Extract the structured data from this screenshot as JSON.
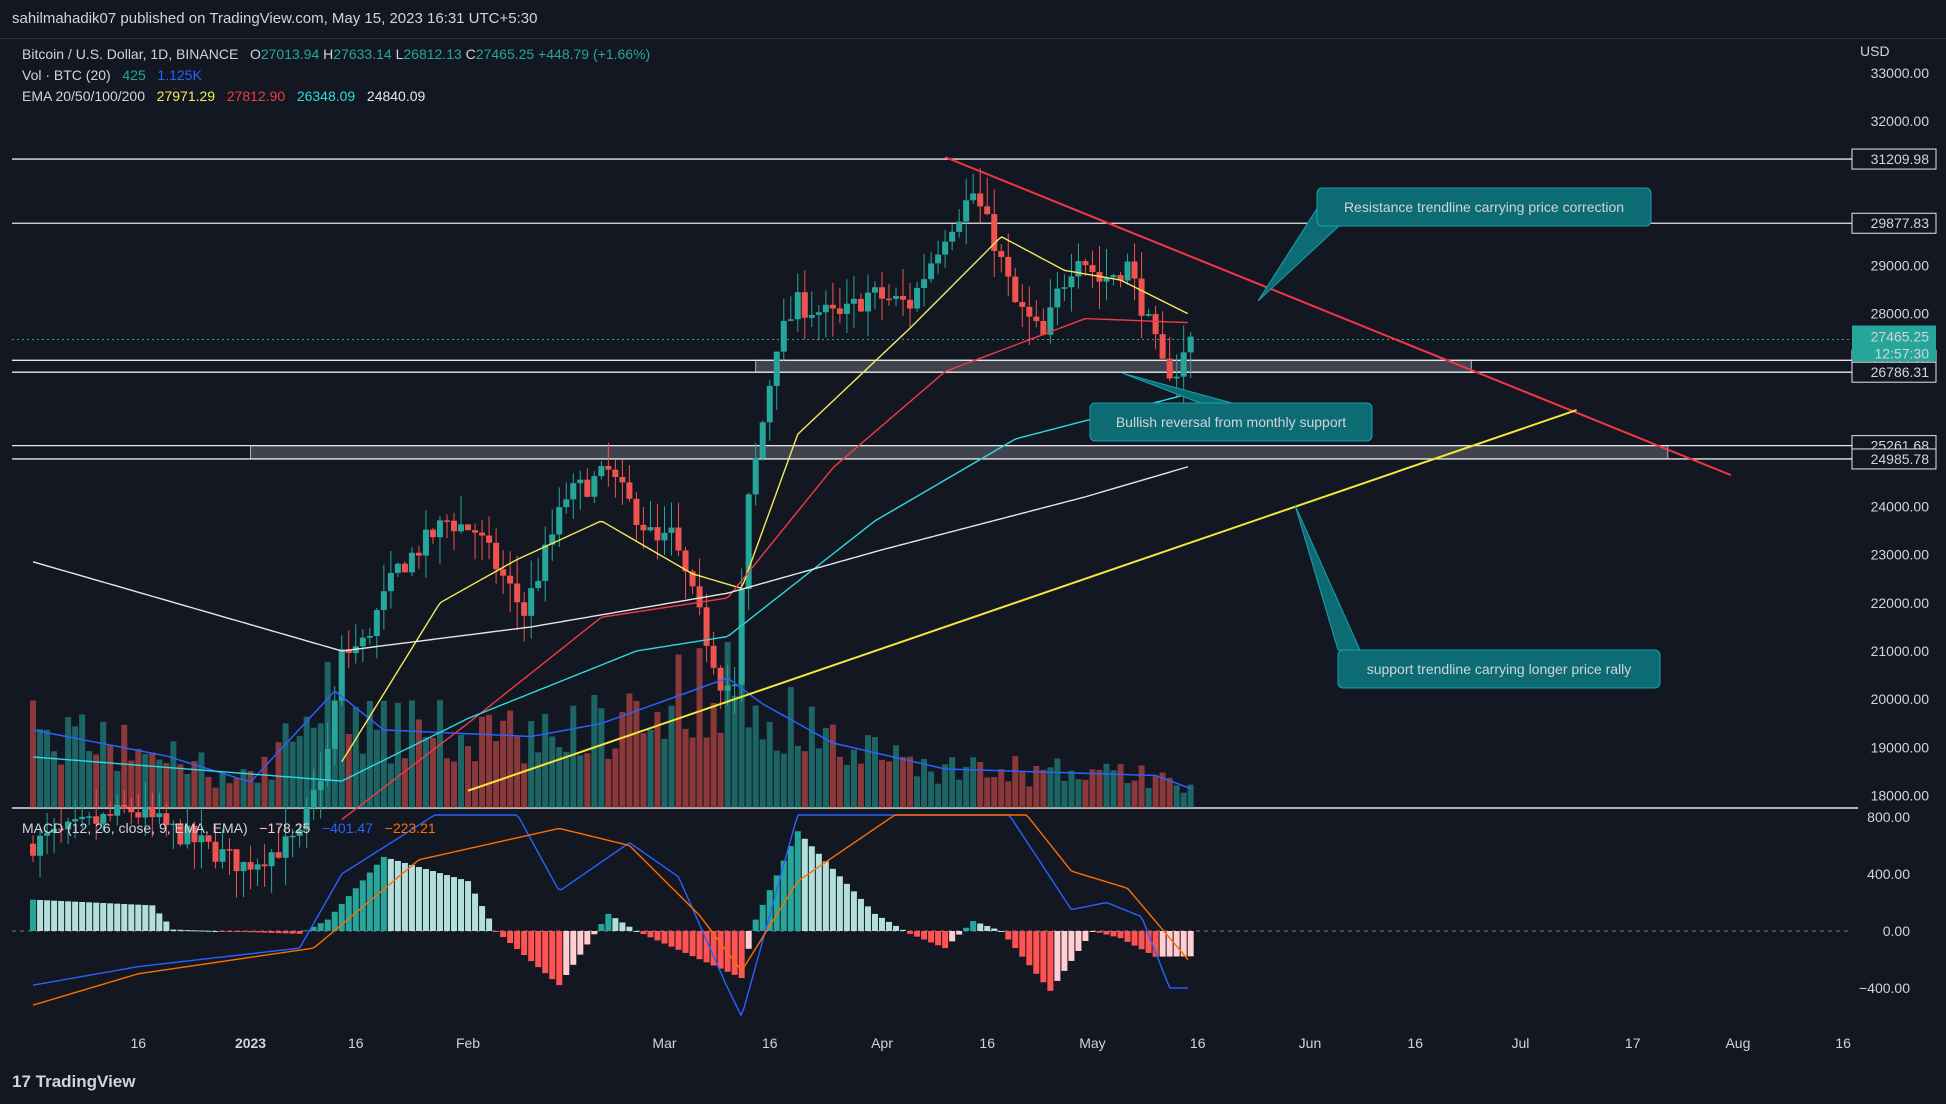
{
  "header": {
    "published": "sahilmahadik07 published on TradingView.com, May 15, 2023 16:31 UTC+5:30"
  },
  "legend": {
    "symbol": "Bitcoin / U.S. Dollar, 1D, BINANCE",
    "o_label": "O",
    "o": "27013.94",
    "h_label": "H",
    "h": "27633.14",
    "l_label": "L",
    "l": "26812.13",
    "c_label": "C",
    "c": "27465.25",
    "change": "+448.79 (+1.66%)",
    "vol_label": "Vol · BTC (20)",
    "vol1": "425",
    "vol2": "1.125K",
    "ema_label": "EMA 20/50/100/200",
    "ema20": "27971.29",
    "ema50": "27812.90",
    "ema100": "26348.09",
    "ema200": "24840.09",
    "macd_label": "MACD (12, 26, close, 9, EMA, EMA)",
    "macd_hist": "−178.25",
    "macd_line": "−401.47",
    "macd_signal": "−223.21"
  },
  "currency": "USD",
  "footer": {
    "brand": "TradingView",
    "logo_mark": "17"
  },
  "colors": {
    "background": "#131722",
    "up": "#26a69a",
    "down": "#ef5350",
    "ema20": "#f5ea5a",
    "ema50": "#ef3b45",
    "ema100": "#2ed8e0",
    "ema200": "#e6e6e6",
    "resistance": "#f23645",
    "support": "#f5e63c",
    "macd": "#2962ff",
    "signal": "#ff6d00",
    "annotation": "#0d6b73"
  },
  "annotations": [
    {
      "text": "Resistance trendline carrying price correction"
    },
    {
      "text": "Bullish reversal from monthly support"
    },
    {
      "text": "support trendline carrying longer price rally"
    }
  ],
  "chart_data": [
    {
      "type": "candlestick",
      "title": "Bitcoin / U.S. Dollar, 1D, BINANCE",
      "x_ticks": [
        "16",
        "2023",
        "16",
        "Feb",
        "Mar",
        "16",
        "Apr",
        "16",
        "May",
        "16",
        "Jun",
        "16",
        "Jul",
        "17",
        "Aug",
        "16"
      ],
      "y_ticks": [
        33000,
        32000,
        29000,
        28000,
        24000,
        23000,
        22000,
        21000,
        20000,
        19000,
        18000
      ],
      "y_tick_labels": [
        "33000.00",
        "32000.00",
        "29000.00",
        "28000.00",
        "24000.00",
        "23000.00",
        "22000.00",
        "21000.00",
        "20000.00",
        "19000.00",
        "18000.00"
      ],
      "ylim": [
        17700,
        33500
      ],
      "price_levels": [
        {
          "value": 31209.98,
          "label": "31209.98"
        },
        {
          "value": 29877.83,
          "label": "29877.83"
        },
        {
          "value": 27033.28,
          "label": "27033.28"
        },
        {
          "value": 26786.31,
          "label": "26786.31"
        },
        {
          "value": 25261.68,
          "label": "25261.68"
        },
        {
          "value": 24985.78,
          "label": "24985.78"
        }
      ],
      "last_price": {
        "value": 27465.25,
        "label": "27465.25",
        "countdown": "12:57:30"
      },
      "support_zones": [
        {
          "from": 26786.31,
          "to": 27033.28,
          "x_start": "2023-03-14",
          "x_end": "2023-06-24"
        },
        {
          "from": 24985.78,
          "to": 25261.68,
          "x_start": "2023-01-01",
          "x_end": "2023-07-22"
        }
      ],
      "resistance_trendline": [
        {
          "x": "2023-04-10",
          "y": 31250
        },
        {
          "x": "2023-07-31",
          "y": 24650
        }
      ],
      "support_trendline": [
        {
          "x": "2023-02-01",
          "y": 18100
        },
        {
          "x": "2023-07-09",
          "y": 26000
        }
      ],
      "ohlc_anchors": [
        [
          "2022-12-01",
          17000
        ],
        [
          "2022-12-15",
          17700
        ],
        [
          "2022-12-31",
          16550
        ],
        [
          "2023-01-08",
          17100
        ],
        [
          "2023-01-12",
          18900
        ],
        [
          "2023-01-14",
          20900
        ],
        [
          "2023-01-17",
          21150
        ],
        [
          "2023-01-22",
          22700
        ],
        [
          "2023-01-29",
          23700
        ],
        [
          "2023-02-02",
          23500
        ],
        [
          "2023-02-09",
          21800
        ],
        [
          "2023-02-15",
          24200
        ],
        [
          "2023-02-21",
          24700
        ],
        [
          "2023-02-28",
          23200
        ],
        [
          "2023-03-02",
          23400
        ],
        [
          "2023-03-09",
          20400
        ],
        [
          "2023-03-11",
          20200
        ],
        [
          "2023-03-13",
          24100
        ],
        [
          "2023-03-17",
          27400
        ],
        [
          "2023-03-20",
          28200
        ],
        [
          "2023-03-26",
          27900
        ],
        [
          "2023-03-30",
          28400
        ],
        [
          "2023-04-05",
          28200
        ],
        [
          "2023-04-10",
          29700
        ],
        [
          "2023-04-14",
          30500
        ],
        [
          "2023-04-17",
          29500
        ],
        [
          "2023-04-20",
          28200
        ],
        [
          "2023-04-24",
          27500
        ],
        [
          "2023-04-26",
          28400
        ],
        [
          "2023-04-29",
          29300
        ],
        [
          "2023-05-02",
          28700
        ],
        [
          "2023-05-06",
          29000
        ],
        [
          "2023-05-08",
          28200
        ],
        [
          "2023-05-11",
          26900
        ],
        [
          "2023-05-13",
          26800
        ],
        [
          "2023-05-15",
          27465
        ]
      ],
      "ema20_anchors": [
        [
          "2023-01-14",
          18700
        ],
        [
          "2023-01-28",
          22000
        ],
        [
          "2023-02-08",
          22900
        ],
        [
          "2023-02-20",
          23700
        ],
        [
          "2023-03-05",
          22600
        ],
        [
          "2023-03-12",
          22300
        ],
        [
          "2023-03-20",
          25500
        ],
        [
          "2023-04-05",
          27700
        ],
        [
          "2023-04-18",
          29600
        ],
        [
          "2023-04-27",
          28900
        ],
        [
          "2023-05-05",
          28700
        ],
        [
          "2023-05-15",
          27971
        ]
      ],
      "ema50_anchors": [
        [
          "2023-01-14",
          17500
        ],
        [
          "2023-02-01",
          19500
        ],
        [
          "2023-02-20",
          21700
        ],
        [
          "2023-03-10",
          22100
        ],
        [
          "2023-03-25",
          24800
        ],
        [
          "2023-04-10",
          26800
        ],
        [
          "2023-04-30",
          27900
        ],
        [
          "2023-05-15",
          27813
        ]
      ],
      "ema100_anchors": [
        [
          "2022-12-01",
          18800
        ],
        [
          "2023-01-14",
          18300
        ],
        [
          "2023-02-01",
          19600
        ],
        [
          "2023-02-25",
          21000
        ],
        [
          "2023-03-10",
          21300
        ],
        [
          "2023-03-31",
          23700
        ],
        [
          "2023-04-20",
          25400
        ],
        [
          "2023-05-15",
          26348
        ]
      ],
      "ema200_anchors": [
        [
          "2022-12-01",
          22850
        ],
        [
          "2023-01-14",
          21000
        ],
        [
          "2023-02-10",
          21500
        ],
        [
          "2023-03-10",
          22200
        ],
        [
          "2023-04-01",
          23100
        ],
        [
          "2023-04-30",
          24200
        ],
        [
          "2023-05-15",
          24840
        ]
      ],
      "volume_axis": {
        "visible": false
      },
      "volume_anchors": [
        [
          "2022-12-01",
          0.6
        ],
        [
          "2022-12-20",
          0.4
        ],
        [
          "2023-01-01",
          0.2
        ],
        [
          "2023-01-13",
          0.9
        ],
        [
          "2023-01-20",
          0.6
        ],
        [
          "2023-02-10",
          0.55
        ],
        [
          "2023-02-20",
          0.65
        ],
        [
          "2023-03-10",
          1.0
        ],
        [
          "2023-03-15",
          0.8
        ],
        [
          "2023-03-25",
          0.5
        ],
        [
          "2023-04-10",
          0.3
        ],
        [
          "2023-05-10",
          0.25
        ],
        [
          "2023-05-15",
          0.15
        ]
      ]
    },
    {
      "type": "bar",
      "title": "MACD (12, 26, close, 9, EMA, EMA)",
      "y_ticks": [
        800,
        400,
        0,
        -400
      ],
      "y_tick_labels": [
        "800.00",
        "400.00",
        "0.00",
        "−400.00"
      ],
      "ylim": [
        -650,
        820
      ],
      "hist_anchors": [
        [
          "2022-12-01",
          220
        ],
        [
          "2022-12-18",
          180
        ],
        [
          "2022-12-21",
          10
        ],
        [
          "2023-01-08",
          -20
        ],
        [
          "2023-01-12",
          80
        ],
        [
          "2023-01-20",
          520
        ],
        [
          "2023-02-01",
          350
        ],
        [
          "2023-02-05",
          0
        ],
        [
          "2023-02-14",
          -380
        ],
        [
          "2023-02-21",
          120
        ],
        [
          "2023-02-25",
          0
        ],
        [
          "2023-03-12",
          -330
        ],
        [
          "2023-03-14",
          80
        ],
        [
          "2023-03-20",
          700
        ],
        [
          "2023-03-31",
          120
        ],
        [
          "2023-04-05",
          -20
        ],
        [
          "2023-04-10",
          -120
        ],
        [
          "2023-04-14",
          70
        ],
        [
          "2023-04-18",
          0
        ],
        [
          "2023-04-25",
          -420
        ],
        [
          "2023-05-01",
          0
        ],
        [
          "2023-05-05",
          -50
        ],
        [
          "2023-05-10",
          -180
        ],
        [
          "2023-05-15",
          -178
        ]
      ],
      "macd_anchors": [
        [
          "2022-12-01",
          -380
        ],
        [
          "2022-12-16",
          -250
        ],
        [
          "2023-01-08",
          -120
        ],
        [
          "2023-01-14",
          400
        ],
        [
          "2023-01-30",
          900
        ],
        [
          "2023-02-08",
          820
        ],
        [
          "2023-02-14",
          280
        ],
        [
          "2023-02-24",
          620
        ],
        [
          "2023-03-03",
          380
        ],
        [
          "2023-03-10",
          -400
        ],
        [
          "2023-03-12",
          -600
        ],
        [
          "2023-03-20",
          820
        ],
        [
          "2023-04-03",
          960
        ],
        [
          "2023-04-08",
          920
        ],
        [
          "2023-04-14",
          1200
        ],
        [
          "2023-04-22",
          600
        ],
        [
          "2023-04-28",
          150
        ],
        [
          "2023-05-03",
          200
        ],
        [
          "2023-05-08",
          100
        ],
        [
          "2023-05-12",
          -400
        ],
        [
          "2023-05-15",
          -401
        ]
      ],
      "signal_anchors": [
        [
          "2022-12-01",
          -520
        ],
        [
          "2022-12-16",
          -300
        ],
        [
          "2023-01-10",
          -120
        ],
        [
          "2023-01-25",
          500
        ],
        [
          "2023-02-14",
          720
        ],
        [
          "2023-02-24",
          600
        ],
        [
          "2023-03-06",
          110
        ],
        [
          "2023-03-12",
          -280
        ],
        [
          "2023-03-20",
          350
        ],
        [
          "2023-04-03",
          820
        ],
        [
          "2023-04-17",
          1100
        ],
        [
          "2023-04-28",
          420
        ],
        [
          "2023-05-06",
          300
        ],
        [
          "2023-05-15",
          -223
        ]
      ]
    }
  ]
}
